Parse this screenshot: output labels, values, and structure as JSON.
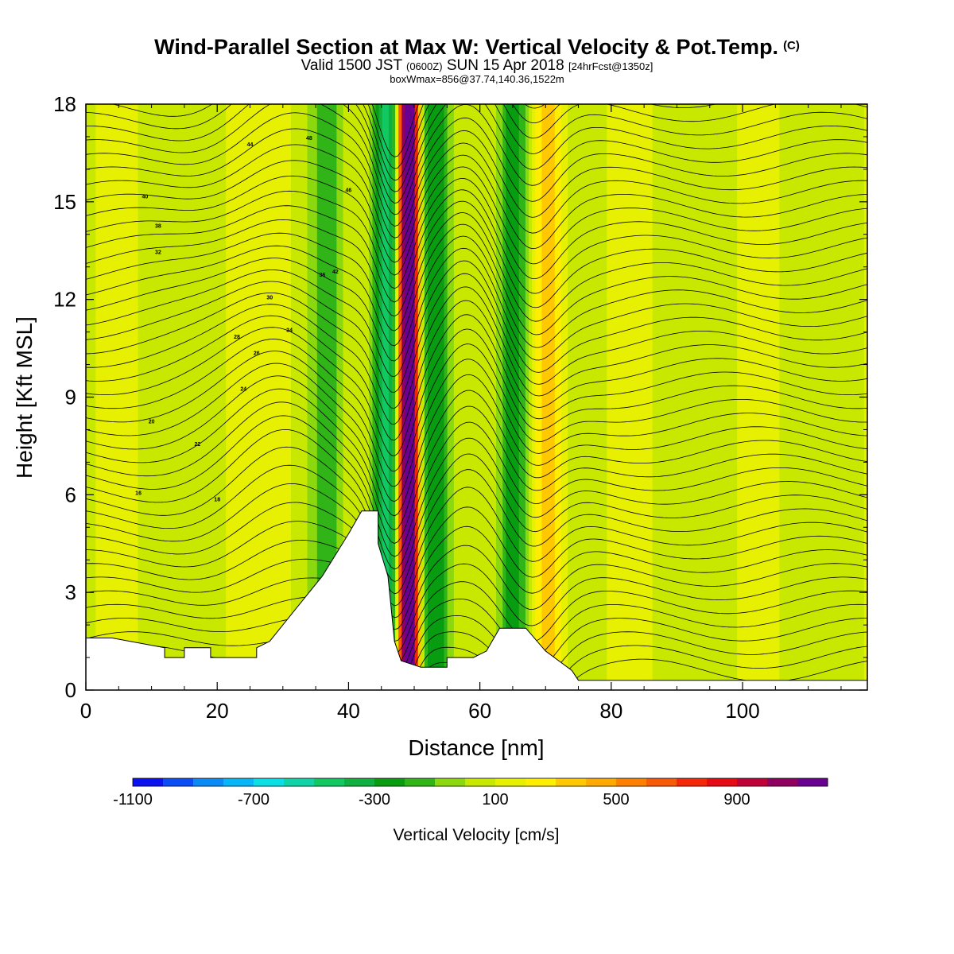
{
  "header": {
    "title_main": "Wind-Parallel Section at Max W: Vertical Velocity & Pot.Temp.",
    "title_mark": "(C)",
    "valid_prefix": "Valid 1500 JST",
    "valid_zulu": "(0600Z)",
    "valid_date": "SUN 15 Apr 2018",
    "forecast": "[24hrFcst@1350z]",
    "box_info": "boxWmax=856@37.74,140.36,1522m"
  },
  "chart_data": {
    "type": "heatmap",
    "xlabel": "Distance [nm]",
    "ylabel": "Height [Kft MSL]",
    "xlim": [
      0,
      119
    ],
    "ylim": [
      0,
      18
    ],
    "x_ticks": [
      0,
      20,
      40,
      60,
      80,
      100
    ],
    "y_ticks": [
      0,
      3,
      6,
      9,
      12,
      15,
      18
    ],
    "grid": false,
    "colorbar": {
      "title": "Vertical Velocity [cm/s]",
      "position": "bottom",
      "tick_labels": [
        "-1100",
        "-700",
        "-300",
        "100",
        "500",
        "900"
      ],
      "tick_values": [
        -1100,
        -700,
        -300,
        100,
        500,
        900
      ],
      "levels": [
        -1100,
        -1000,
        -900,
        -800,
        -700,
        -600,
        -500,
        -400,
        -300,
        -200,
        -100,
        0,
        100,
        200,
        300,
        400,
        500,
        600,
        700,
        800,
        900,
        1000,
        1100
      ],
      "colors": [
        "#0a12f0",
        "#0a4cf5",
        "#0a8af5",
        "#06b6f6",
        "#08e0e6",
        "#10d4a8",
        "#12c860",
        "#10b040",
        "#089c10",
        "#30b418",
        "#8cd80e",
        "#c8e800",
        "#e6f000",
        "#ffee00",
        "#ffc800",
        "#ffaa00",
        "#ff8000",
        "#f85a08",
        "#f42808",
        "#e60a14",
        "#c00038",
        "#900060",
        "#6a0090"
      ]
    },
    "vertical_velocity_bands": [
      {
        "x_center": 46.0,
        "value": -500
      },
      {
        "x_center": 48.5,
        "value": 850
      },
      {
        "x_center": 49.5,
        "value": 1000
      },
      {
        "x_center": 53.0,
        "value": -250
      },
      {
        "x_center": 65.0,
        "value": -300
      },
      {
        "x_center": 70.5,
        "value": 400
      },
      {
        "x_center": 30.0,
        "value": 150
      },
      {
        "x_center": 37.0,
        "value": -150
      }
    ],
    "terrain_kft": [
      [
        0,
        1.6
      ],
      [
        4,
        1.6
      ],
      [
        12,
        1.3
      ],
      [
        12,
        1.0
      ],
      [
        15,
        1.0
      ],
      [
        15,
        1.3
      ],
      [
        19,
        1.3
      ],
      [
        19,
        1.0
      ],
      [
        26,
        1.0
      ],
      [
        26,
        1.3
      ],
      [
        28,
        1.5
      ],
      [
        32,
        2.5
      ],
      [
        36,
        3.5
      ],
      [
        40,
        4.8
      ],
      [
        42,
        5.5
      ],
      [
        44.5,
        5.5
      ],
      [
        44.5,
        4.5
      ],
      [
        46,
        3.5
      ],
      [
        46.5,
        2.5
      ],
      [
        47,
        1.5
      ],
      [
        48,
        0.9
      ],
      [
        51,
        0.7
      ],
      [
        55,
        0.7
      ],
      [
        55,
        1.0
      ],
      [
        59,
        1.0
      ],
      [
        61,
        1.2
      ],
      [
        63,
        1.9
      ],
      [
        67,
        1.9
      ],
      [
        70,
        1.2
      ],
      [
        74,
        0.6
      ],
      [
        75,
        0.3
      ],
      [
        119,
        0.3
      ]
    ],
    "potential_temperature": {
      "unit": "C",
      "contour_labels": [
        "16",
        "18",
        "20",
        "22",
        "24",
        "26",
        "28",
        "30",
        "32",
        "34",
        "36",
        "38",
        "40",
        "42",
        "44",
        "46",
        "48"
      ]
    }
  }
}
